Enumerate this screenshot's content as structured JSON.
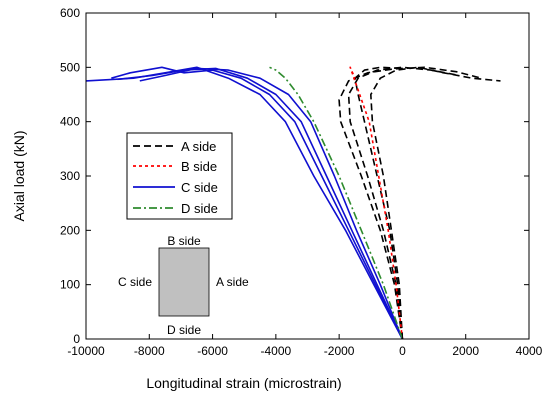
{
  "chart_data": {
    "type": "line",
    "xlabel": "Longitudinal strain (microstrain)",
    "ylabel": "Axial load (kN)",
    "xlim": [
      -10000,
      4000
    ],
    "ylim": [
      0,
      600
    ],
    "xticks": [
      -10000,
      -8000,
      -6000,
      -4000,
      -2000,
      0,
      2000,
      4000
    ],
    "yticks": [
      0,
      100,
      200,
      300,
      400,
      500,
      600
    ],
    "grid": false,
    "legend_position": "middle-left",
    "series": [
      {
        "name": "A side",
        "color": "#000000",
        "dash": "dashed",
        "curves": [
          [
            [
              0,
              0
            ],
            [
              -150,
              100
            ],
            [
              -400,
              200
            ],
            [
              -800,
              300
            ],
            [
              -1200,
              400
            ],
            [
              -1400,
              450
            ],
            [
              -1500,
              480
            ],
            [
              -1200,
              495
            ],
            [
              -700,
              500
            ],
            [
              0,
              498
            ]
          ],
          [
            [
              0,
              0
            ],
            [
              -200,
              100
            ],
            [
              -600,
              200
            ],
            [
              -1100,
              300
            ],
            [
              -1650,
              400
            ],
            [
              -1700,
              450
            ],
            [
              -1400,
              480
            ],
            [
              -800,
              495
            ],
            [
              0,
              500
            ],
            [
              900,
              495
            ],
            [
              1800,
              485
            ]
          ],
          [
            [
              0,
              0
            ],
            [
              -100,
              100
            ],
            [
              -350,
              200
            ],
            [
              -600,
              300
            ],
            [
              -950,
              400
            ],
            [
              -1000,
              450
            ],
            [
              -700,
              480
            ],
            [
              -200,
              495
            ],
            [
              500,
              500
            ],
            [
              1300,
              490
            ],
            [
              2200,
              480
            ],
            [
              3100,
              475
            ]
          ],
          [
            [
              0,
              0
            ],
            [
              -250,
              100
            ],
            [
              -700,
              200
            ],
            [
              -1300,
              300
            ],
            [
              -1950,
              400
            ],
            [
              -2000,
              440
            ],
            [
              -1700,
              475
            ],
            [
              -1100,
              490
            ],
            [
              -300,
              497
            ],
            [
              700,
              500
            ],
            [
              1700,
              492
            ],
            [
              2500,
              480
            ]
          ]
        ]
      },
      {
        "name": "B side",
        "color": "#ff0000",
        "dash": "dotted",
        "curves": [
          [
            [
              0,
              0
            ],
            [
              -200,
              100
            ],
            [
              -450,
              200
            ],
            [
              -750,
              300
            ],
            [
              -1050,
              400
            ],
            [
              -1350,
              450
            ],
            [
              -1650,
              500
            ],
            [
              -1500,
              480
            ]
          ]
        ]
      },
      {
        "name": "C side",
        "color": "#1010d0",
        "dash": "solid",
        "curves": [
          [
            [
              0,
              0
            ],
            [
              -800,
              100
            ],
            [
              -1600,
              200
            ],
            [
              -2400,
              300
            ],
            [
              -3200,
              400
            ],
            [
              -4000,
              450
            ],
            [
              -4900,
              480
            ],
            [
              -5900,
              498
            ],
            [
              -6900,
              495
            ],
            [
              -7900,
              485
            ],
            [
              -9000,
              478
            ]
          ],
          [
            [
              0,
              0
            ],
            [
              -900,
              100
            ],
            [
              -1800,
              200
            ],
            [
              -2800,
              300
            ],
            [
              -3700,
              400
            ],
            [
              -4500,
              450
            ],
            [
              -5500,
              480
            ],
            [
              -6500,
              500
            ],
            [
              -7500,
              490
            ],
            [
              -8500,
              480
            ],
            [
              -10000,
              475
            ]
          ],
          [
            [
              0,
              0
            ],
            [
              -700,
              100
            ],
            [
              -1450,
              200
            ],
            [
              -2150,
              300
            ],
            [
              -2900,
              400
            ],
            [
              -3600,
              450
            ],
            [
              -4500,
              480
            ],
            [
              -5500,
              495
            ],
            [
              -6500,
              498
            ],
            [
              -7500,
              485
            ],
            [
              -8300,
              475
            ]
          ],
          [
            [
              0,
              0
            ],
            [
              -850,
              100
            ],
            [
              -1700,
              200
            ],
            [
              -2550,
              300
            ],
            [
              -3400,
              400
            ],
            [
              -4200,
              450
            ],
            [
              -5100,
              480
            ],
            [
              -6000,
              495
            ],
            [
              -6900,
              490
            ],
            [
              -7600,
              500
            ],
            [
              -8600,
              490
            ],
            [
              -9200,
              480
            ]
          ]
        ]
      },
      {
        "name": "D side",
        "color": "#2e8b2e",
        "dash": "dash-dot",
        "curves": [
          [
            [
              0,
              0
            ],
            [
              -600,
              100
            ],
            [
              -1300,
              200
            ],
            [
              -2000,
              300
            ],
            [
              -2800,
              400
            ],
            [
              -3300,
              450
            ],
            [
              -3700,
              480
            ],
            [
              -4000,
              495
            ],
            [
              -4200,
              500
            ]
          ]
        ]
      }
    ]
  },
  "inset": {
    "top_label": "B side",
    "left_label": "C side",
    "right_label": "A side",
    "bottom_label": "D side",
    "fill": "#c0c0c0"
  }
}
